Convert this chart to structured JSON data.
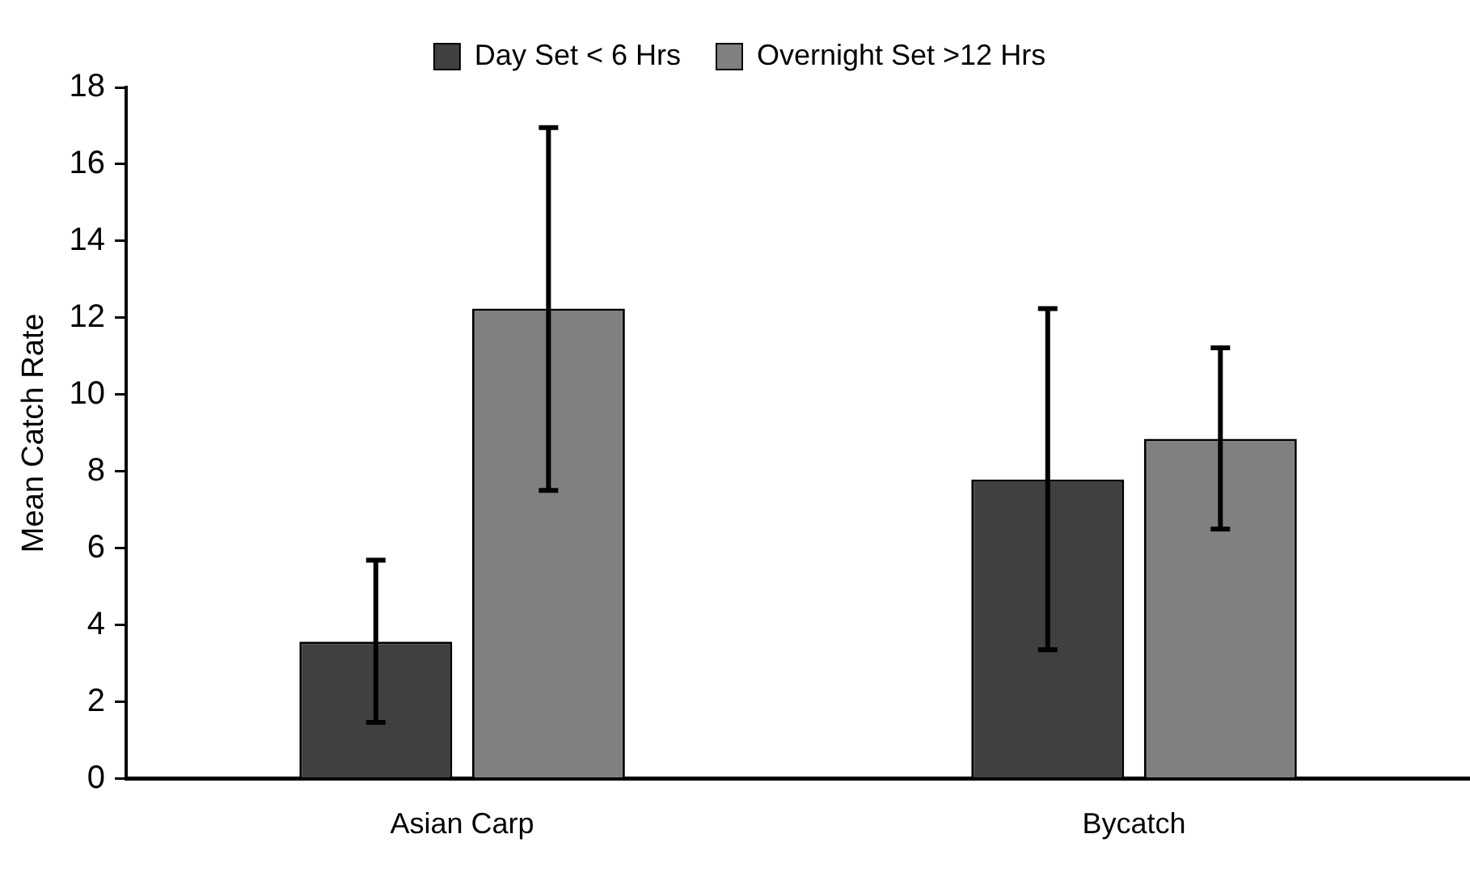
{
  "chart_data": {
    "type": "bar",
    "ylabel": "Mean Catch Rate",
    "categories": [
      "Asian Carp",
      "Bycatch"
    ],
    "series": [
      {
        "name": "Day Set < 6 Hrs",
        "color": "#404040",
        "values": [
          3.57,
          7.79
        ],
        "errors": [
          [
            1.47,
            5.69
          ],
          [
            3.36,
            12.24
          ]
        ]
      },
      {
        "name": "Overnight Set >12 Hrs",
        "color": "#808080",
        "values": [
          12.24,
          8.85
        ],
        "errors": [
          [
            7.51,
            16.95
          ],
          [
            6.5,
            11.22
          ]
        ]
      }
    ],
    "ylim": [
      0,
      18
    ],
    "yticks": [
      0,
      2,
      4,
      6,
      8,
      10,
      12,
      14,
      16,
      18
    ],
    "grid": false,
    "legend": "top"
  }
}
